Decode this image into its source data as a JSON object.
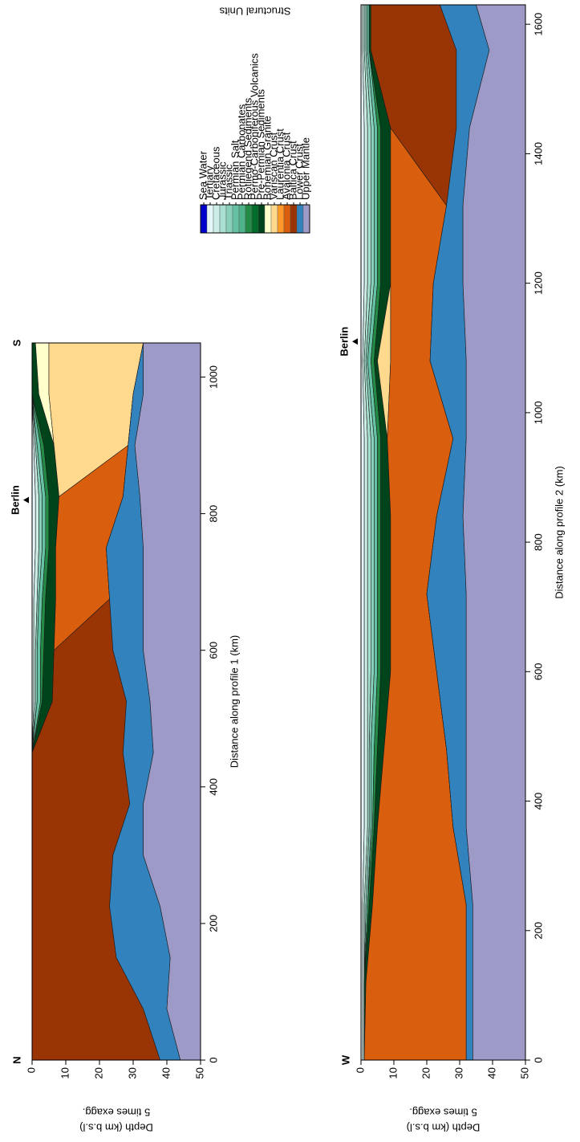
{
  "legend": {
    "title": "Structural Units",
    "items": [
      {
        "name": "Sea Water",
        "color": "#0000cc"
      },
      {
        "name": "Tertiary",
        "color": "#e5f5f9"
      },
      {
        "name": "Cretaceous",
        "color": "#ccece6"
      },
      {
        "name": "Jurassic",
        "color": "#a8dfd0"
      },
      {
        "name": "Triassic",
        "color": "#88d0bb"
      },
      {
        "name": "Permian Salt",
        "color": "#66c2a4"
      },
      {
        "name": "Permian Carbonates",
        "color": "#4fb28a"
      },
      {
        "name": "Rotliegend Sediments",
        "color": "#238b45"
      },
      {
        "name": "Permo-Carboniferous Volcanics",
        "color": "#006d2c"
      },
      {
        "name": "Pre-Permian Sediments",
        "color": "#00441b"
      },
      {
        "name": "Bohemian Granite",
        "color": "#ffffcc"
      },
      {
        "name": "Variscan Crust",
        "color": "#fed98e"
      },
      {
        "name": "Laurentia Crust",
        "color": "#fe9929"
      },
      {
        "name": "Avalonia Crust",
        "color": "#d95f0e"
      },
      {
        "name": "Baltica Crust",
        "color": "#993404"
      },
      {
        "name": "Lower Crust",
        "color": "#3182bd"
      },
      {
        "name": "Upper Mantle",
        "color": "#9e9ac8"
      }
    ]
  },
  "chart_data": [
    {
      "type": "stacked_area",
      "xlabel": "Distance along profile 1 (km)",
      "ylabel": "Depth (km b.s.l)",
      "ylabel2": "5 times exagg.",
      "start_label": "N",
      "end_label": "S",
      "annotation": {
        "text": "Berlin",
        "x": 820
      },
      "xlim": [
        0,
        1050
      ],
      "xticks": [
        0,
        200,
        400,
        600,
        800,
        1000
      ],
      "ylim": [
        0,
        50
      ],
      "yticks": [
        0,
        10,
        20,
        30,
        40,
        50
      ],
      "x": [
        0,
        75,
        150,
        225,
        300,
        375,
        450,
        525,
        600,
        675,
        750,
        825,
        900,
        975,
        1050
      ],
      "series": [
        {
          "color": "#e5f5f9",
          "values": [
            0,
            0,
            0,
            0,
            0,
            0,
            0,
            0.5,
            0.5,
            0.5,
            1,
            1,
            0.5,
            0,
            0
          ]
        },
        {
          "color": "#ccece6",
          "values": [
            0,
            0,
            0,
            0,
            0,
            0,
            0,
            0.5,
            0.5,
            1,
            1,
            1,
            0.5,
            0,
            0
          ]
        },
        {
          "color": "#88d0bb",
          "values": [
            0,
            0,
            0,
            0,
            0,
            0,
            0,
            0.5,
            0.5,
            0.5,
            1,
            1,
            0.5,
            0,
            0
          ]
        },
        {
          "color": "#66c2a4",
          "values": [
            0,
            0,
            0,
            0,
            0,
            0,
            0,
            1,
            1,
            1,
            1,
            1,
            1,
            0,
            0
          ]
        },
        {
          "color": "#238b45",
          "values": [
            0,
            0,
            0,
            0,
            0,
            0,
            0,
            0.5,
            1,
            1,
            1,
            1,
            1,
            0,
            0
          ]
        },
        {
          "color": "#00441b",
          "values": [
            0,
            0,
            0,
            0,
            0,
            0,
            0,
            3,
            3,
            3,
            2,
            3,
            3,
            2,
            1
          ]
        },
        {
          "color": "#ffffcc",
          "values": [
            0,
            0,
            0,
            0,
            0,
            0,
            0,
            0,
            0,
            0,
            0,
            0,
            0,
            3,
            4
          ]
        },
        {
          "color": "#fed98e",
          "values": [
            0,
            0,
            0,
            0,
            0,
            0,
            0,
            0,
            0,
            0,
            0,
            0,
            22,
            25,
            28
          ]
        },
        {
          "color": "#d95f0e",
          "values": [
            0,
            0,
            0,
            0,
            0,
            0,
            0,
            0,
            0,
            16,
            15,
            19,
            0,
            0,
            0
          ]
        },
        {
          "color": "#993404",
          "values": [
            38,
            33,
            25,
            23,
            24,
            29,
            27,
            22,
            17.5,
            0,
            0,
            0,
            0,
            0,
            0
          ]
        },
        {
          "color": "#3182bd",
          "values": [
            6,
            7,
            16,
            15,
            9,
            4,
            9,
            7,
            9,
            10,
            11,
            5,
            2,
            3,
            0
          ]
        },
        {
          "color": "#9e9ac8",
          "values": [
            6,
            10,
            9,
            12,
            17,
            17,
            14,
            15,
            17,
            17,
            17,
            18,
            19.5,
            17,
            17
          ]
        }
      ]
    },
    {
      "type": "stacked_area",
      "xlabel": "Distance along profile 2 (km)",
      "ylabel": "Depth (km b.s.l)",
      "ylabel2": "5 times exagg.",
      "start_label": "W",
      "annotation": {
        "text": "Berlin",
        "x": 1110
      },
      "xlim": [
        0,
        1630
      ],
      "xticks": [
        0,
        200,
        400,
        600,
        800,
        1000,
        1200,
        1400,
        1600
      ],
      "ylim": [
        0,
        50
      ],
      "yticks": [
        0,
        10,
        20,
        30,
        40,
        50
      ],
      "x": [
        0,
        120,
        240,
        360,
        480,
        600,
        720,
        840,
        960,
        1080,
        1200,
        1320,
        1440,
        1560,
        1630
      ],
      "series": [
        {
          "color": "#e5f5f9",
          "values": [
            0.5,
            0.5,
            0.5,
            1,
            1,
            1,
            1,
            1,
            1,
            0.5,
            1,
            1,
            1,
            0.5,
            0.5
          ]
        },
        {
          "color": "#ccece6",
          "values": [
            0.5,
            0.5,
            0.5,
            1,
            1,
            1,
            1,
            1,
            1,
            0.5,
            1,
            1,
            1,
            0.5,
            0.5
          ]
        },
        {
          "color": "#a8dfd0",
          "values": [
            0,
            0,
            0.5,
            0.5,
            0.5,
            1,
            1,
            1,
            1,
            0.5,
            1,
            1,
            1,
            0.5,
            0.5
          ]
        },
        {
          "color": "#88d0bb",
          "values": [
            0,
            0,
            0.5,
            0.5,
            0.5,
            1,
            1,
            1,
            1,
            0.5,
            1,
            1,
            1,
            0.5,
            0.5
          ]
        },
        {
          "color": "#66c2a4",
          "values": [
            0,
            0,
            0,
            0.5,
            1,
            1,
            1,
            1,
            1,
            1,
            1,
            1,
            1,
            0.5,
            0.5
          ]
        },
        {
          "color": "#238b45",
          "values": [
            0,
            0,
            0.5,
            0.5,
            1,
            1,
            1,
            1,
            1,
            1,
            1,
            1,
            1,
            0,
            0
          ]
        },
        {
          "color": "#00441b",
          "values": [
            0,
            0.5,
            1,
            1,
            2,
            3,
            3,
            3,
            2,
            1,
            3,
            3,
            3,
            0.5,
            0.5
          ]
        },
        {
          "color": "#fed98e",
          "values": [
            0,
            0,
            0,
            0,
            0,
            0,
            0,
            0,
            0,
            4,
            0,
            0,
            0,
            0,
            0
          ]
        },
        {
          "color": "#d95f0e",
          "values": [
            31,
            30.5,
            28.5,
            23,
            19,
            14,
            11,
            14,
            20,
            12,
            13,
            17,
            0,
            0,
            0
          ]
        },
        {
          "color": "#993404",
          "values": [
            0,
            0,
            0,
            0,
            0,
            0,
            0,
            0,
            0,
            0,
            0,
            0,
            20,
            26,
            21
          ]
        },
        {
          "color": "#3182bd",
          "values": [
            2,
            2,
            2,
            4,
            6,
            9,
            12,
            8,
            4,
            11,
            9,
            5,
            4,
            10,
            11
          ]
        },
        {
          "color": "#9e9ac8",
          "values": [
            16,
            16,
            16,
            18,
            18,
            18,
            18,
            19,
            18,
            18,
            19,
            19,
            17,
            11,
            15
          ]
        }
      ]
    }
  ]
}
